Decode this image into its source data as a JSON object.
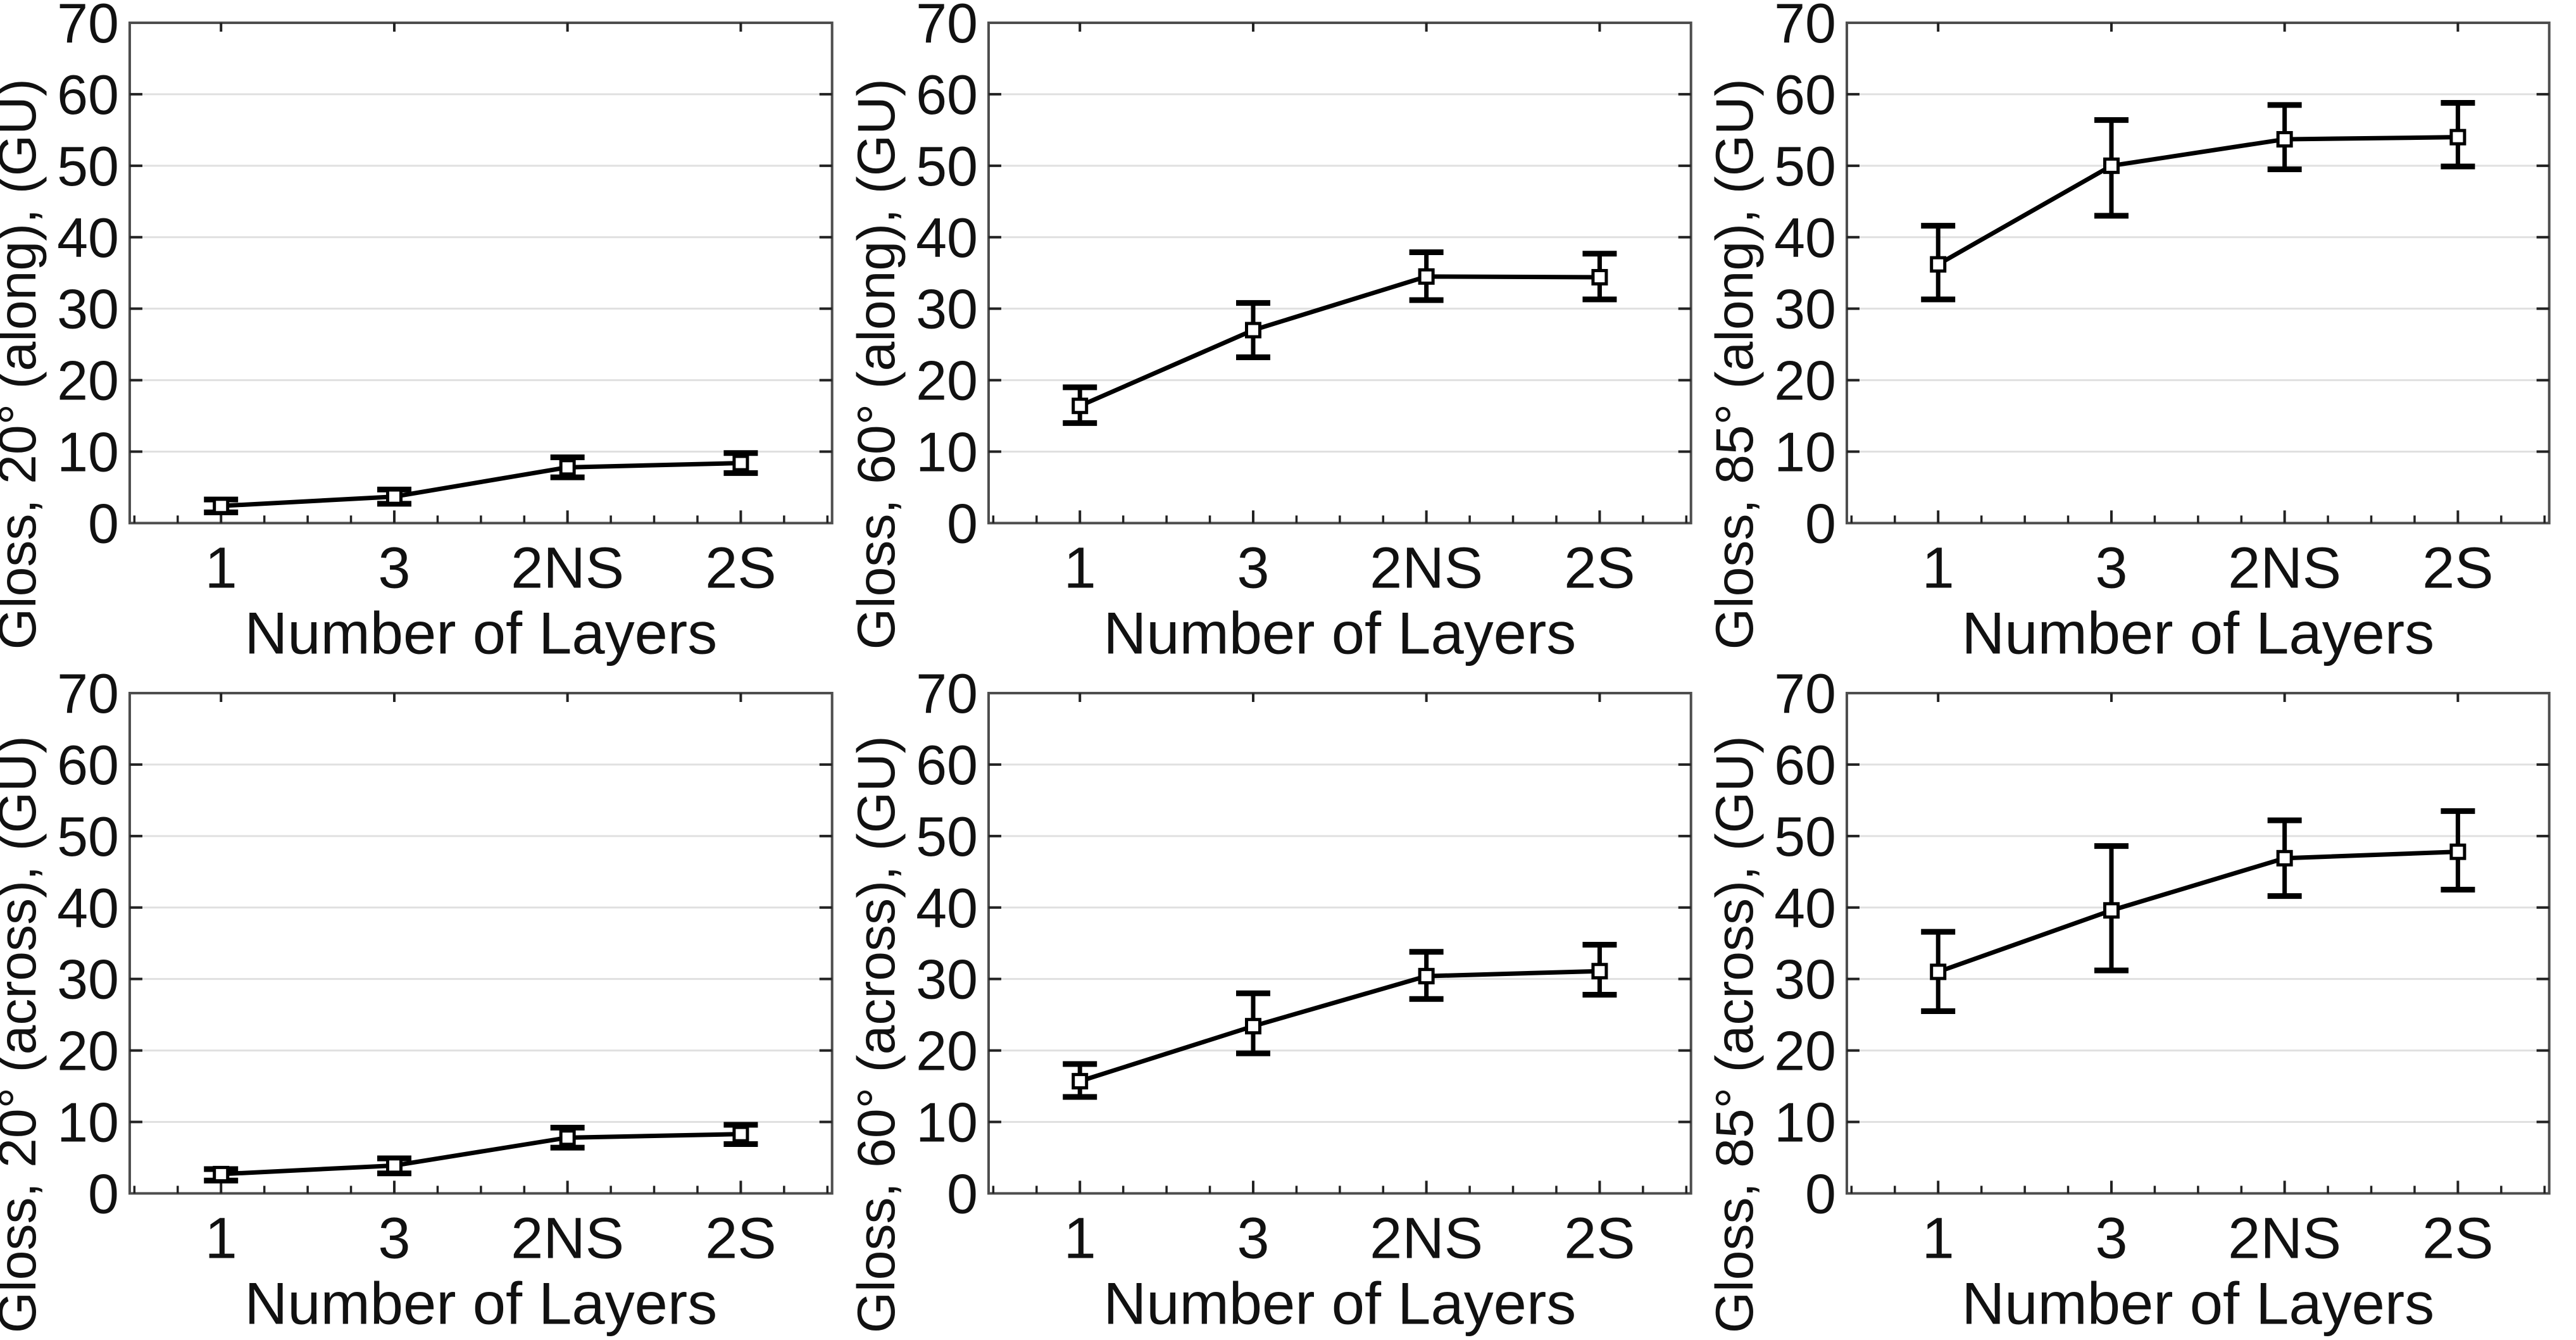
{
  "figure": {
    "rows": 2,
    "cols": 3,
    "background": "#ffffff"
  },
  "style": {
    "line_color": "#000000",
    "marker_fill": "#ffffff",
    "grid_color": "#e0e0e0",
    "frame_color": "#4d4d4d",
    "tick_color": "#222222",
    "text_color": "#111111"
  },
  "chart_data": [
    {
      "type": "line",
      "id": "gloss-20-along",
      "ylabel": "Gloss, 20° (along), (GU)",
      "xlabel": "Number of Layers",
      "categories": [
        "1",
        "3",
        "2NS",
        "2S"
      ],
      "values": [
        2.4,
        3.7,
        7.8,
        8.4
      ],
      "err_low": [
        1.5,
        2.7,
        6.4,
        7.0
      ],
      "err_high": [
        3.3,
        4.7,
        9.2,
        9.8
      ],
      "ylim": [
        0,
        70
      ],
      "ytick_step": 10,
      "grid": true,
      "legend": "none"
    },
    {
      "type": "line",
      "id": "gloss-60-along",
      "ylabel": "Gloss, 60° (along), (GU)",
      "xlabel": "Number of Layers",
      "categories": [
        "1",
        "3",
        "2NS",
        "2S"
      ],
      "values": [
        16.4,
        27.0,
        34.5,
        34.4
      ],
      "err_low": [
        14.0,
        23.2,
        31.2,
        31.3
      ],
      "err_high": [
        19.0,
        30.8,
        37.9,
        37.7
      ],
      "ylim": [
        0,
        70
      ],
      "ytick_step": 10,
      "grid": true,
      "legend": "none"
    },
    {
      "type": "line",
      "id": "gloss-85-along",
      "ylabel": "Gloss, 85° (along), (GU)",
      "xlabel": "Number of Layers",
      "categories": [
        "1",
        "3",
        "2NS",
        "2S"
      ],
      "values": [
        36.2,
        50.0,
        53.7,
        54.0
      ],
      "err_low": [
        31.3,
        43.0,
        49.5,
        49.9
      ],
      "err_high": [
        41.6,
        56.4,
        58.5,
        58.8
      ],
      "ylim": [
        0,
        70
      ],
      "ytick_step": 10,
      "grid": true,
      "legend": "none"
    },
    {
      "type": "line",
      "id": "gloss-20-across",
      "ylabel": "Gloss, 20° (across), (GU)",
      "xlabel": "Number of Layers",
      "categories": [
        "1",
        "3",
        "2NS",
        "2S"
      ],
      "values": [
        2.7,
        3.9,
        7.8,
        8.3
      ],
      "err_low": [
        1.8,
        2.8,
        6.4,
        6.9
      ],
      "err_high": [
        3.4,
        4.9,
        9.2,
        9.6
      ],
      "ylim": [
        0,
        70
      ],
      "ytick_step": 10,
      "grid": true,
      "legend": "none"
    },
    {
      "type": "line",
      "id": "gloss-60-across",
      "ylabel": "Gloss, 60° (across), (GU)",
      "xlabel": "Number of Layers",
      "categories": [
        "1",
        "3",
        "2NS",
        "2S"
      ],
      "values": [
        15.7,
        23.4,
        30.4,
        31.1
      ],
      "err_low": [
        13.5,
        19.6,
        27.2,
        27.8
      ],
      "err_high": [
        18.1,
        28.0,
        33.8,
        34.8
      ],
      "ylim": [
        0,
        70
      ],
      "ytick_step": 10,
      "grid": true,
      "legend": "none"
    },
    {
      "type": "line",
      "id": "gloss-85-across",
      "ylabel": "Gloss, 85° (across), (GU)",
      "xlabel": "Number of Layers",
      "categories": [
        "1",
        "3",
        "2NS",
        "2S"
      ],
      "values": [
        31.0,
        39.6,
        46.9,
        47.8
      ],
      "err_low": [
        25.5,
        31.2,
        41.6,
        42.5
      ],
      "err_high": [
        36.6,
        48.6,
        52.2,
        53.5
      ],
      "ylim": [
        0,
        70
      ],
      "ytick_step": 10,
      "grid": true,
      "legend": "none"
    }
  ]
}
